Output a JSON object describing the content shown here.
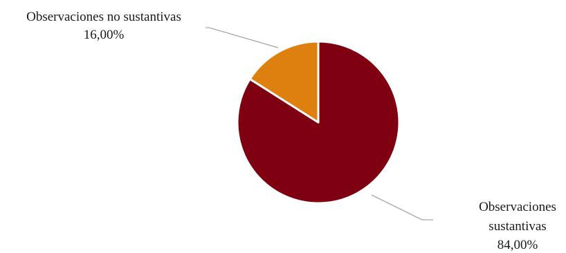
{
  "chart_data": {
    "type": "pie",
    "title": "",
    "slices": [
      {
        "name": "Observaciones sustantivas",
        "label_lines": [
          "Observaciones",
          "sustantivas"
        ],
        "value": 84.0,
        "value_label": "84,00%",
        "color": "#7f0010"
      },
      {
        "name": "Observaciones no sustantivas",
        "label_lines": [
          "Observaciones no sustantivas"
        ],
        "value": 16.0,
        "value_label": "16,00%",
        "color": "#de800f"
      }
    ],
    "legend": "none"
  }
}
